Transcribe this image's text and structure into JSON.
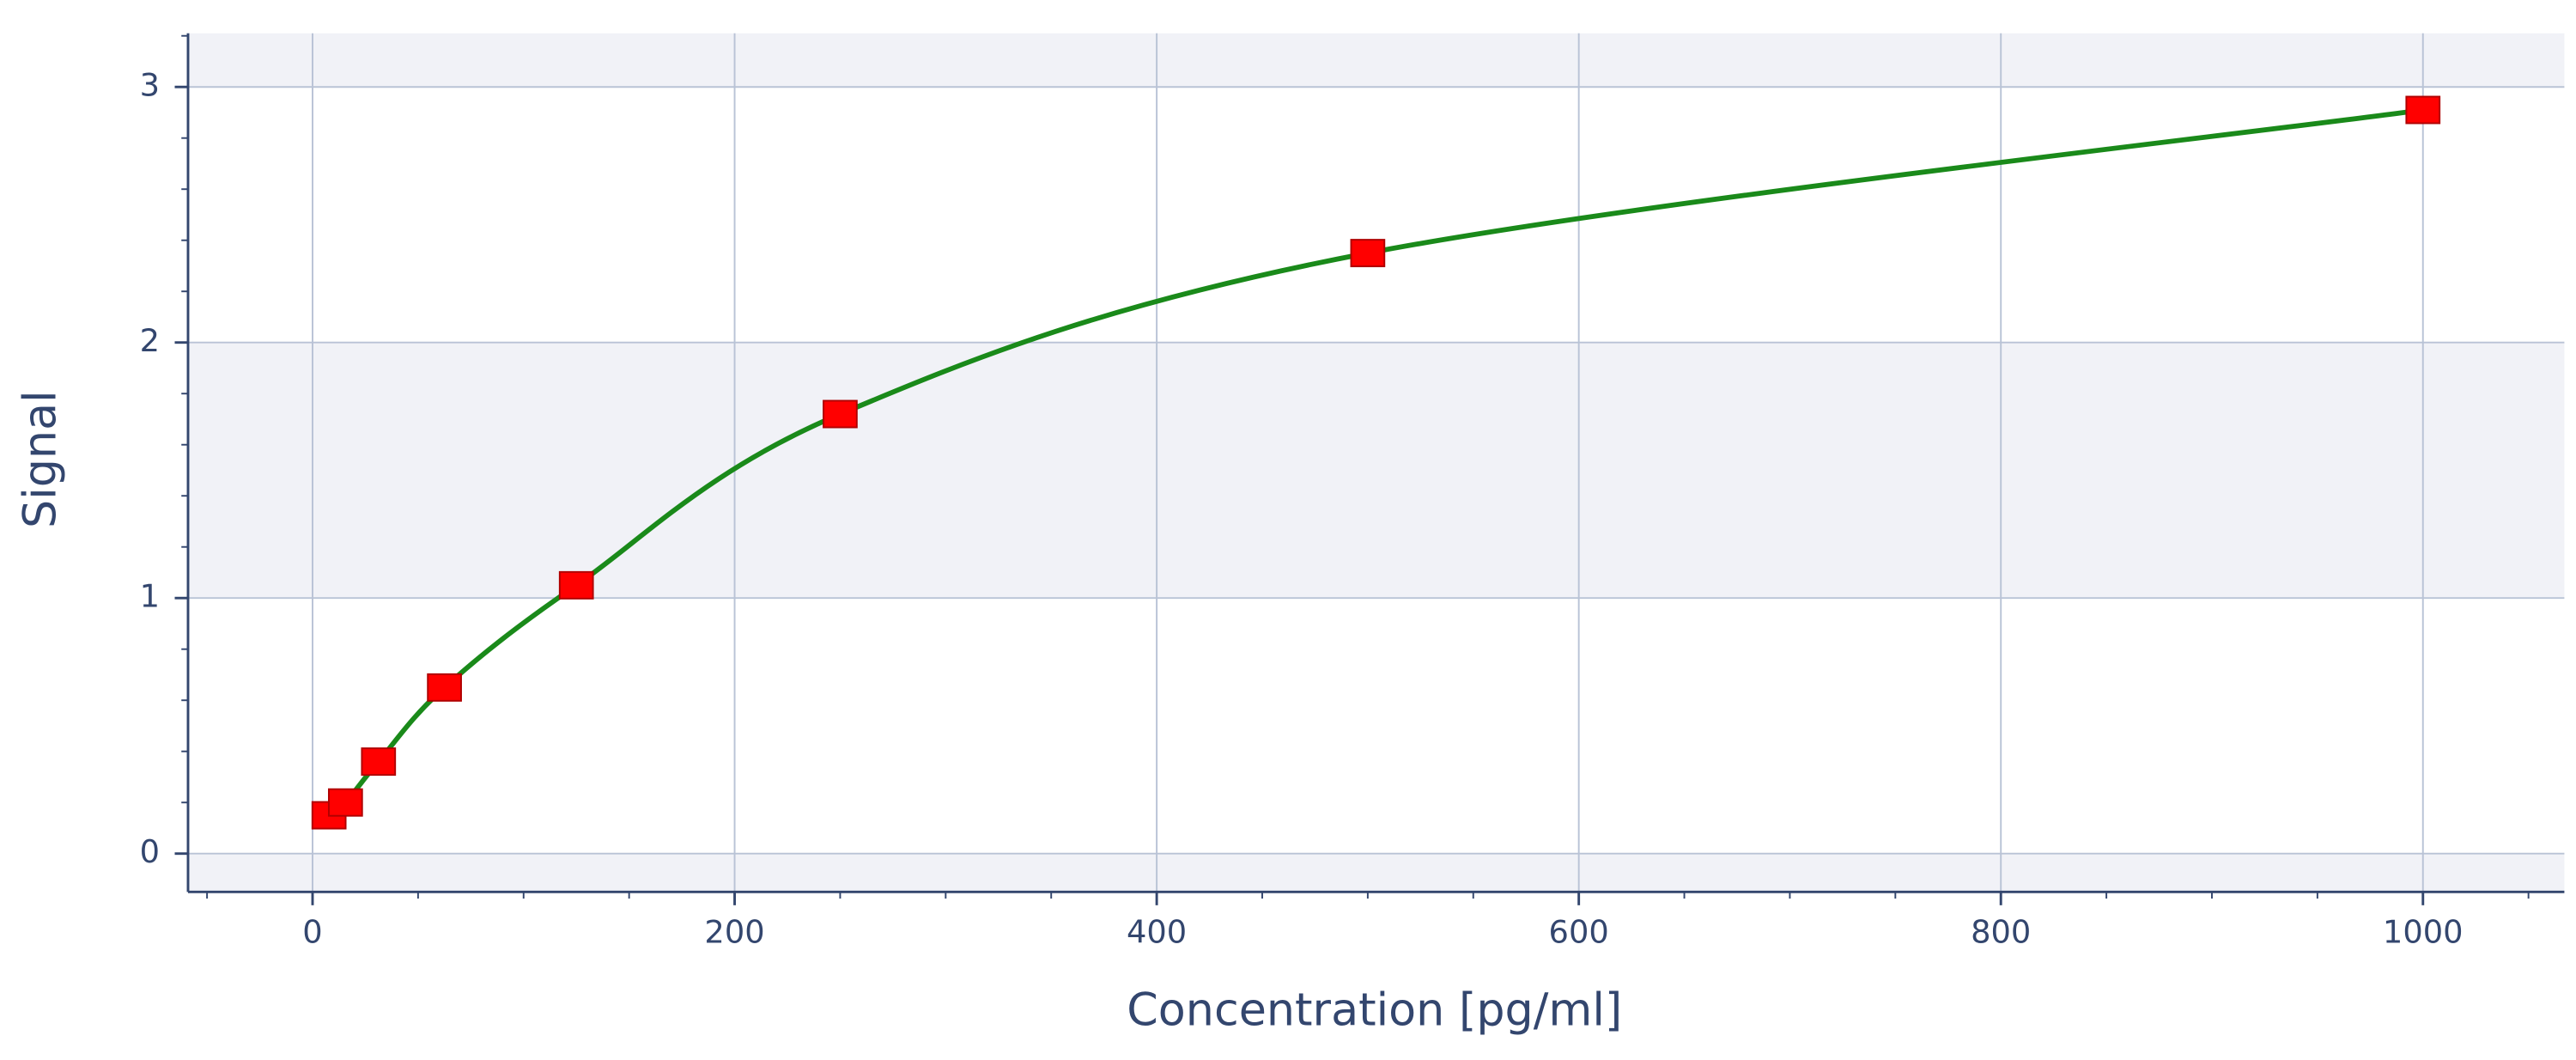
{
  "chart_data": {
    "type": "scatter",
    "x_label": "Concentration [pg/ml]",
    "y_label": "Signal",
    "x": [
      7.8,
      15.6,
      31.25,
      62.5,
      125,
      250,
      500,
      1000
    ],
    "series": [
      {
        "color": "#ff0000",
        "marker": "square",
        "values": [
          0.15,
          0.2,
          0.36,
          0.65,
          1.05,
          1.72,
          2.35,
          2.91
        ]
      }
    ],
    "fit_line_color": "#1a8a1a",
    "xlim": [
      -59,
      1067
    ],
    "ylim": [
      -0.15,
      3.21
    ],
    "xticks": [
      0,
      200,
      400,
      600,
      800,
      1000
    ],
    "yticks": [
      0,
      1,
      2,
      3
    ],
    "x_minor_ticks": [
      -50,
      50,
      100,
      150,
      250,
      300,
      350,
      450,
      500,
      550,
      650,
      700,
      750,
      850,
      900,
      950,
      1050
    ],
    "y_minor_ticks": [
      0.2,
      0.4,
      0.6,
      0.8,
      1.2,
      1.4,
      1.6,
      1.8,
      2.2,
      2.4,
      2.6,
      2.8,
      3.2
    ],
    "grid": true,
    "band_colors": [
      "#f1f2f7",
      "#ffffff"
    ]
  }
}
